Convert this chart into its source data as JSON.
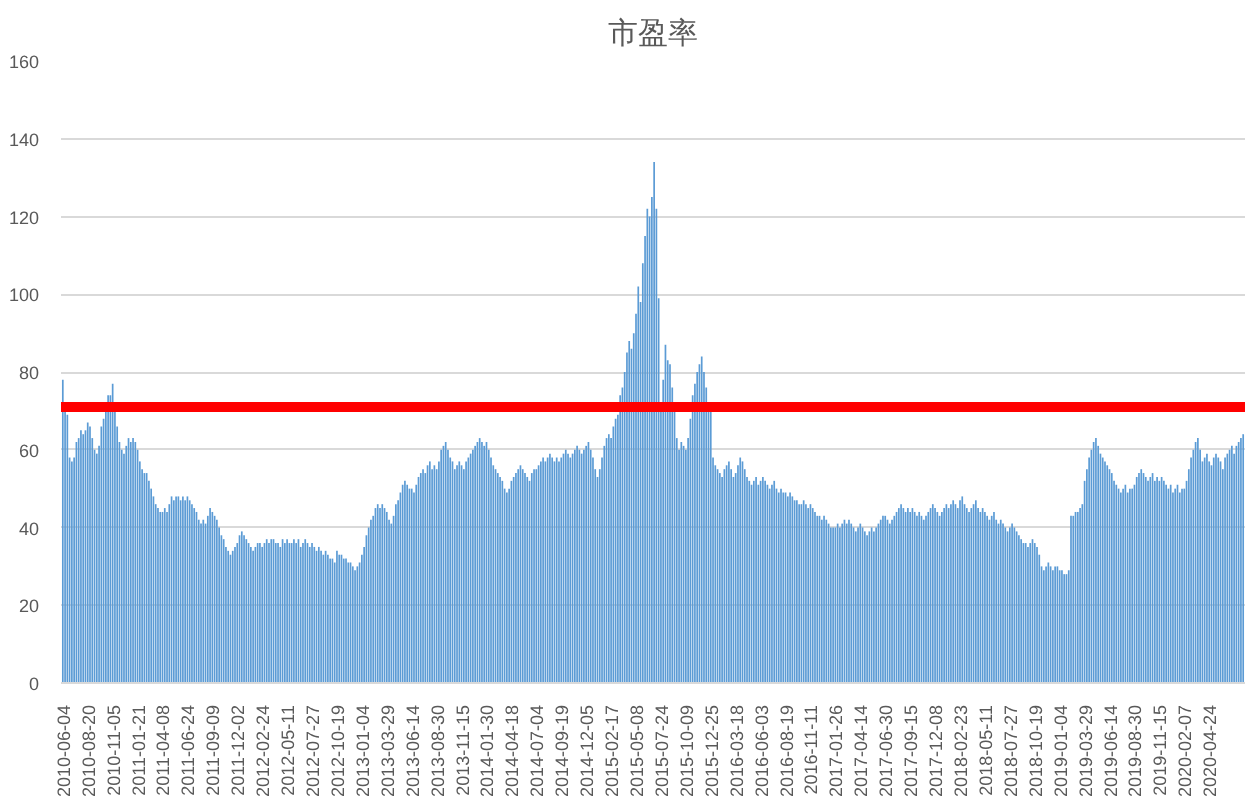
{
  "chart_data": {
    "type": "bar",
    "title": "市盈率",
    "categories": [
      "2010-06-04",
      null,
      null,
      null,
      null,
      null,
      null,
      null,
      null,
      null,
      null,
      "2010-08-20",
      null,
      null,
      null,
      null,
      null,
      null,
      null,
      null,
      null,
      null,
      "2010-11-05",
      null,
      null,
      null,
      null,
      null,
      null,
      null,
      null,
      null,
      null,
      "2011-01-21",
      null,
      null,
      null,
      null,
      null,
      null,
      null,
      null,
      null,
      null,
      "2011-04-08",
      null,
      null,
      null,
      null,
      null,
      null,
      null,
      null,
      null,
      null,
      "2011-06-24",
      null,
      null,
      null,
      null,
      null,
      null,
      null,
      null,
      null,
      null,
      "2011-09-09",
      null,
      null,
      null,
      null,
      null,
      null,
      null,
      null,
      null,
      null,
      "2011-12-02",
      null,
      null,
      null,
      null,
      null,
      null,
      null,
      null,
      null,
      null,
      "2012-02-24",
      null,
      null,
      null,
      null,
      null,
      null,
      null,
      null,
      null,
      null,
      "2012-05-11",
      null,
      null,
      null,
      null,
      null,
      null,
      null,
      null,
      null,
      null,
      "2012-07-27",
      null,
      null,
      null,
      null,
      null,
      null,
      null,
      null,
      null,
      null,
      "2012-10-19",
      null,
      null,
      null,
      null,
      null,
      null,
      null,
      null,
      null,
      null,
      "2013-01-04",
      null,
      null,
      null,
      null,
      null,
      null,
      null,
      null,
      null,
      null,
      "2013-03-29",
      null,
      null,
      null,
      null,
      null,
      null,
      null,
      null,
      null,
      null,
      "2013-06-14",
      null,
      null,
      null,
      null,
      null,
      null,
      null,
      null,
      null,
      null,
      "2013-08-30",
      null,
      null,
      null,
      null,
      null,
      null,
      null,
      null,
      null,
      null,
      "2013-11-15",
      null,
      null,
      null,
      null,
      null,
      null,
      null,
      null,
      null,
      null,
      "2014-01-30",
      null,
      null,
      null,
      null,
      null,
      null,
      null,
      null,
      null,
      null,
      "2014-04-18",
      null,
      null,
      null,
      null,
      null,
      null,
      null,
      null,
      null,
      null,
      "2014-07-04",
      null,
      null,
      null,
      null,
      null,
      null,
      null,
      null,
      null,
      null,
      "2014-09-19",
      null,
      null,
      null,
      null,
      null,
      null,
      null,
      null,
      null,
      null,
      "2014-12-05",
      null,
      null,
      null,
      null,
      null,
      null,
      null,
      null,
      null,
      null,
      "2015-02-17",
      null,
      null,
      null,
      null,
      null,
      null,
      null,
      null,
      null,
      null,
      "2015-05-08",
      null,
      null,
      null,
      null,
      null,
      null,
      null,
      null,
      null,
      null,
      "2015-07-24",
      null,
      null,
      null,
      null,
      null,
      null,
      null,
      null,
      null,
      null,
      "2015-10-09",
      null,
      null,
      null,
      null,
      null,
      null,
      null,
      null,
      null,
      null,
      "2015-12-25",
      null,
      null,
      null,
      null,
      null,
      null,
      null,
      null,
      null,
      null,
      "2016-03-18",
      null,
      null,
      null,
      null,
      null,
      null,
      null,
      null,
      null,
      null,
      "2016-06-03",
      null,
      null,
      null,
      null,
      null,
      null,
      null,
      null,
      null,
      null,
      "2016-08-19",
      null,
      null,
      null,
      null,
      null,
      null,
      null,
      null,
      null,
      null,
      "2016-11-11",
      null,
      null,
      null,
      null,
      null,
      null,
      null,
      null,
      null,
      null,
      "2017-01-26",
      null,
      null,
      null,
      null,
      null,
      null,
      null,
      null,
      null,
      null,
      "2017-04-14",
      null,
      null,
      null,
      null,
      null,
      null,
      null,
      null,
      null,
      null,
      "2017-06-30",
      null,
      null,
      null,
      null,
      null,
      null,
      null,
      null,
      null,
      null,
      "2017-09-15",
      null,
      null,
      null,
      null,
      null,
      null,
      null,
      null,
      null,
      null,
      "2017-12-08",
      null,
      null,
      null,
      null,
      null,
      null,
      null,
      null,
      null,
      null,
      "2018-02-23",
      null,
      null,
      null,
      null,
      null,
      null,
      null,
      null,
      null,
      null,
      "2018-05-11",
      null,
      null,
      null,
      null,
      null,
      null,
      null,
      null,
      null,
      null,
      "2018-07-27",
      null,
      null,
      null,
      null,
      null,
      null,
      null,
      null,
      null,
      null,
      "2018-10-19",
      null,
      null,
      null,
      null,
      null,
      null,
      null,
      null,
      null,
      null,
      "2019-01-04",
      null,
      null,
      null,
      null,
      null,
      null,
      null,
      null,
      null,
      null,
      "2019-03-29",
      null,
      null,
      null,
      null,
      null,
      null,
      null,
      null,
      null,
      null,
      "2019-06-14",
      null,
      null,
      null,
      null,
      null,
      null,
      null,
      null,
      null,
      null,
      "2019-08-30",
      null,
      null,
      null,
      null,
      null,
      null,
      null,
      null,
      null,
      null,
      "2019-11-15",
      null,
      null,
      null,
      null,
      null,
      null,
      null,
      null,
      null,
      null,
      "2020-02-07",
      null,
      null,
      null,
      null,
      null,
      null,
      null,
      null,
      null,
      null,
      "2020-04-24",
      null,
      null,
      null,
      null,
      null,
      null,
      null,
      null,
      null,
      null,
      null,
      null,
      null,
      null,
      null
    ],
    "series": [
      {
        "color": "#5b9bd5",
        "values": [
          78,
          70,
          69,
          58,
          57,
          58,
          62,
          63,
          65,
          64,
          65,
          67,
          66,
          63,
          60,
          59,
          61,
          66,
          68,
          70,
          74,
          74,
          77,
          70,
          66,
          62,
          60,
          59,
          61,
          63,
          62,
          63,
          62,
          60,
          57,
          55,
          54,
          54,
          52,
          50,
          48,
          46,
          45,
          44,
          44,
          45,
          44,
          46,
          48,
          47,
          48,
          48,
          47,
          48,
          47,
          48,
          47,
          46,
          45,
          44,
          42,
          41,
          42,
          41,
          43,
          45,
          44,
          43,
          42,
          40,
          38,
          37,
          35,
          34,
          33,
          34,
          35,
          36,
          38,
          39,
          38,
          37,
          36,
          35,
          34,
          35,
          36,
          36,
          35,
          36,
          37,
          36,
          37,
          37,
          36,
          36,
          35,
          37,
          36,
          37,
          36,
          36,
          37,
          36,
          37,
          35,
          36,
          37,
          36,
          35,
          36,
          35,
          34,
          35,
          34,
          33,
          34,
          33,
          32,
          32,
          31,
          34,
          33,
          33,
          32,
          32,
          31,
          31,
          30,
          29,
          30,
          31,
          33,
          35,
          38,
          40,
          42,
          43,
          45,
          46,
          45,
          46,
          45,
          44,
          42,
          41,
          43,
          46,
          47,
          49,
          51,
          52,
          51,
          50,
          50,
          49,
          51,
          53,
          54,
          55,
          54,
          56,
          57,
          55,
          56,
          55,
          57,
          60,
          61,
          62,
          60,
          58,
          57,
          55,
          56,
          57,
          56,
          55,
          57,
          58,
          59,
          60,
          61,
          62,
          63,
          62,
          61,
          62,
          60,
          58,
          56,
          55,
          54,
          53,
          52,
          50,
          49,
          50,
          52,
          53,
          54,
          55,
          56,
          55,
          54,
          53,
          52,
          54,
          55,
          55,
          56,
          57,
          58,
          57,
          58,
          59,
          58,
          57,
          58,
          57,
          58,
          59,
          60,
          59,
          58,
          59,
          60,
          61,
          60,
          59,
          60,
          61,
          62,
          60,
          58,
          55,
          53,
          55,
          58,
          61,
          63,
          64,
          63,
          66,
          68,
          69,
          74,
          76,
          80,
          85,
          88,
          86,
          90,
          95,
          102,
          98,
          108,
          115,
          122,
          120,
          125,
          134,
          122,
          99,
          71,
          78,
          87,
          83,
          82,
          76,
          70,
          63,
          60,
          62,
          61,
          60,
          63,
          68,
          74,
          77,
          80,
          82,
          84,
          80,
          76,
          71,
          70,
          58,
          56,
          55,
          54,
          53,
          55,
          56,
          57,
          55,
          53,
          54,
          56,
          58,
          57,
          55,
          53,
          52,
          51,
          52,
          53,
          51,
          52,
          53,
          52,
          51,
          50,
          51,
          52,
          50,
          49,
          50,
          49,
          49,
          48,
          49,
          48,
          47,
          47,
          46,
          46,
          47,
          46,
          45,
          46,
          45,
          44,
          43,
          43,
          42,
          43,
          42,
          41,
          40,
          40,
          40,
          41,
          40,
          41,
          42,
          41,
          42,
          41,
          40,
          39,
          40,
          41,
          40,
          39,
          38,
          39,
          40,
          39,
          40,
          41,
          42,
          43,
          43,
          42,
          41,
          42,
          43,
          44,
          45,
          46,
          45,
          44,
          45,
          44,
          45,
          44,
          43,
          44,
          43,
          42,
          43,
          44,
          45,
          46,
          45,
          44,
          43,
          44,
          45,
          46,
          45,
          46,
          47,
          46,
          45,
          47,
          48,
          46,
          45,
          44,
          45,
          46,
          47,
          45,
          44,
          45,
          44,
          43,
          42,
          43,
          44,
          42,
          41,
          42,
          41,
          40,
          39,
          40,
          41,
          40,
          39,
          38,
          37,
          36,
          36,
          35,
          36,
          37,
          36,
          35,
          33,
          30,
          29,
          30,
          31,
          30,
          29,
          30,
          30,
          29,
          29,
          28,
          28,
          29,
          43,
          43,
          44,
          44,
          45,
          46,
          52,
          55,
          58,
          60,
          62,
          63,
          61,
          59,
          58,
          57,
          56,
          55,
          54,
          52,
          51,
          50,
          49,
          50,
          51,
          49,
          50,
          50,
          51,
          53,
          54,
          55,
          54,
          53,
          52,
          53,
          54,
          52,
          53,
          52,
          53,
          52,
          51,
          50,
          51,
          49,
          50,
          51,
          49,
          50,
          50,
          52,
          55,
          58,
          60,
          62,
          63,
          60,
          57,
          58,
          59,
          57,
          56,
          58,
          59,
          58,
          57,
          55,
          58,
          59,
          60,
          61,
          59,
          61,
          62,
          63,
          64
        ]
      }
    ],
    "ylim": [
      0,
      160
    ],
    "yticks": [
      0,
      20,
      40,
      60,
      80,
      100,
      120,
      140,
      160
    ],
    "grid": "y",
    "ref_lines": [
      {
        "axis": "y",
        "value": 71,
        "color": "#ff0000"
      }
    ]
  }
}
